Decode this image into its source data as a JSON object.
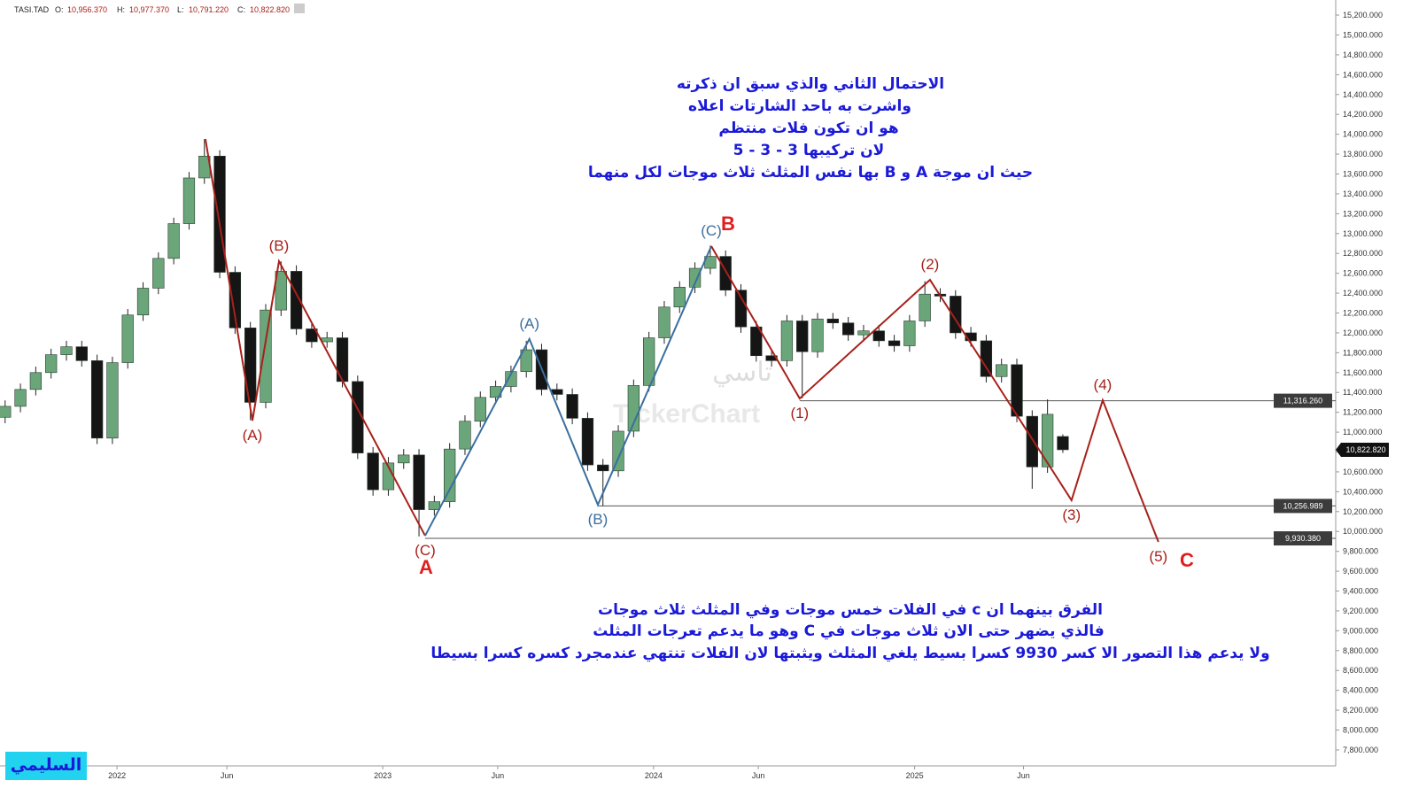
{
  "chart_data": {
    "type": "candlestick",
    "header": {
      "symbol": "TASI.TAD",
      "fields": [
        {
          "name": "O:",
          "value": "10,956.370"
        },
        {
          "name": "H:",
          "value": "10,977.370"
        },
        {
          "name": "L:",
          "value": "10,791.220"
        },
        {
          "name": "C:",
          "value": "10,822.820"
        }
      ]
    },
    "xlim": [
      0,
      261.4
    ],
    "ylim": [
      7657,
      15352
    ],
    "grid": false,
    "xticks": [
      {
        "value": 22.9,
        "label": "2022"
      },
      {
        "value": 44.4,
        "label": "Jun"
      },
      {
        "value": 74.9,
        "label": "2023"
      },
      {
        "value": 97.4,
        "label": "Jun"
      },
      {
        "value": 127.9,
        "label": "2024"
      },
      {
        "value": 148.4,
        "label": "Jun"
      },
      {
        "value": 179,
        "label": "2025"
      },
      {
        "value": 200.3,
        "label": "Jun"
      }
    ],
    "yticks": [
      {
        "value": 7800,
        "label": "7,800.000"
      },
      {
        "value": 8000,
        "label": "8,000.000"
      },
      {
        "value": 8200,
        "label": "8,200.000"
      },
      {
        "value": 8400,
        "label": "8,400.000"
      },
      {
        "value": 8600,
        "label": "8,600.000"
      },
      {
        "value": 8800,
        "label": "8,800.000"
      },
      {
        "value": 9000,
        "label": "9,000.000"
      },
      {
        "value": 9200,
        "label": "9,200.000"
      },
      {
        "value": 9400,
        "label": "9,400.000"
      },
      {
        "value": 9600,
        "label": "9,600.000"
      },
      {
        "value": 9800,
        "label": "9,800.000"
      },
      {
        "value": 10000,
        "label": "10,000.000"
      },
      {
        "value": 10200,
        "label": "10,200.000"
      },
      {
        "value": 10400,
        "label": "10,400.000"
      },
      {
        "value": 10600,
        "label": "10,600.000"
      },
      {
        "value": 10800,
        "label": "10,800.000"
      },
      {
        "value": 11000,
        "label": "11,000.000"
      },
      {
        "value": 11200,
        "label": "11,200.000"
      },
      {
        "value": 11400,
        "label": "11,400.000"
      },
      {
        "value": 11600,
        "label": "11,600.000"
      },
      {
        "value": 11800,
        "label": "11,800.000"
      },
      {
        "value": 12000,
        "label": "12,000.000"
      },
      {
        "value": 12200,
        "label": "12,200.000"
      },
      {
        "value": 12400,
        "label": "12,400.000"
      },
      {
        "value": 12600,
        "label": "12,600.000"
      },
      {
        "value": 12800,
        "label": "12,800.000"
      },
      {
        "value": 13000,
        "label": "13,000.000"
      },
      {
        "value": 13200,
        "label": "13,200.000"
      },
      {
        "value": 13400,
        "label": "13,400.000"
      },
      {
        "value": 13600,
        "label": "13,600.000"
      },
      {
        "value": 13800,
        "label": "13,800.000"
      },
      {
        "value": 14000,
        "label": "14,000.000"
      },
      {
        "value": 14200,
        "label": "14,200.000"
      },
      {
        "value": 14400,
        "label": "14,400.000"
      },
      {
        "value": 14600,
        "label": "14,600.000"
      },
      {
        "value": 14800,
        "label": "14,800.000"
      },
      {
        "value": 15000,
        "label": "15,000.000"
      },
      {
        "value": 15200,
        "label": "15,200.000"
      }
    ],
    "up_color": "#6aa67a",
    "down_color": "#151515",
    "x": [
      1,
      4,
      7,
      10,
      13,
      16,
      19,
      22,
      25,
      28,
      31,
      34,
      37,
      40,
      43,
      46,
      49,
      52,
      55,
      58,
      61,
      64,
      67,
      70,
      73,
      76,
      79,
      82,
      85,
      88,
      91,
      94,
      97,
      100,
      103,
      106,
      109,
      112,
      115,
      118,
      121,
      124,
      127,
      130,
      133,
      136,
      139,
      142,
      145,
      148,
      151,
      154,
      157,
      160,
      163,
      166,
      169,
      172,
      175,
      178,
      181,
      184,
      187,
      190,
      193,
      196,
      199,
      202,
      205,
      208
    ],
    "open": [
      11150,
      11260,
      11430,
      11600,
      11780,
      11860,
      11720,
      10940,
      11700,
      12180,
      12450,
      12750,
      13100,
      13560,
      13780,
      12610,
      12050,
      11300,
      12230,
      12620,
      12040,
      11910,
      11950,
      11510,
      10790,
      10420,
      10690,
      10770,
      10220,
      10300,
      10830,
      11110,
      11350,
      11460,
      11610,
      11830,
      11430,
      11380,
      11140,
      10670,
      10610,
      11010,
      11470,
      11950,
      12260,
      12460,
      12650,
      12770,
      12430,
      12060,
      11770,
      11720,
      12120,
      11810,
      12140,
      12100,
      11980,
      12020,
      11920,
      11870,
      12120,
      12390,
      12370,
      12000,
      11920,
      11560,
      11680,
      11160,
      10650,
      10956.37
    ],
    "high": [
      11320,
      11490,
      11660,
      11840,
      11920,
      11920,
      11780,
      11760,
      12240,
      12510,
      12810,
      13160,
      13620,
      13950,
      13840,
      12670,
      12110,
      12290,
      12720,
      12680,
      12100,
      12010,
      12010,
      11570,
      10850,
      10750,
      10830,
      10830,
      10360,
      10890,
      11170,
      11410,
      11520,
      11670,
      11920,
      11890,
      11490,
      11440,
      11200,
      10730,
      11070,
      11530,
      12010,
      12320,
      12520,
      12710,
      12880,
      12830,
      12490,
      12120,
      11830,
      12180,
      12180,
      12200,
      12200,
      12160,
      12080,
      12080,
      11980,
      12180,
      12520,
      12450,
      12430,
      12060,
      11980,
      11740,
      11740,
      11220,
      11330,
      10977.37
    ],
    "low": [
      11090,
      11200,
      11370,
      11540,
      11720,
      11660,
      10880,
      10880,
      11640,
      12120,
      12390,
      12690,
      13040,
      13500,
      12550,
      11990,
      11120,
      11240,
      12170,
      11980,
      11850,
      11850,
      11450,
      10730,
      10360,
      10360,
      10630,
      9950,
      10160,
      10240,
      10770,
      11050,
      11290,
      11400,
      11550,
      11370,
      11320,
      11080,
      10610,
      10257,
      10550,
      10950,
      11410,
      11890,
      12200,
      12400,
      12590,
      12370,
      12000,
      11710,
      11660,
      11660,
      11340,
      11750,
      12040,
      11920,
      11920,
      11860,
      11810,
      11810,
      12060,
      12310,
      11940,
      11860,
      11500,
      11500,
      11100,
      10430,
      10590,
      10791.22
    ],
    "close": [
      11260,
      11430,
      11600,
      11780,
      11860,
      11720,
      10940,
      11700,
      12180,
      12450,
      12750,
      13100,
      13560,
      13780,
      12610,
      12050,
      11300,
      12230,
      12620,
      12040,
      11910,
      11950,
      11510,
      10790,
      10420,
      10690,
      10770,
      10220,
      10300,
      10830,
      11110,
      11350,
      11460,
      11610,
      11830,
      11430,
      11380,
      11140,
      10670,
      10610,
      11010,
      11470,
      11950,
      12260,
      12460,
      12650,
      12770,
      12430,
      12060,
      11770,
      11720,
      12120,
      11810,
      12140,
      12100,
      11980,
      12020,
      11920,
      11870,
      12120,
      12390,
      12370,
      12000,
      11920,
      11560,
      11680,
      11160,
      10650,
      11180,
      10822.82
    ],
    "last_label": "10,822.820",
    "hlines": [
      {
        "value": 11316.26,
        "label": "11,316.260",
        "from": 156.5
      },
      {
        "value": 10256.989,
        "label": "10,256.989",
        "from": 117
      },
      {
        "value": 9930.38,
        "label": "9,930.380",
        "from": 83.2
      }
    ],
    "waves": [
      {
        "color": "#a8201a",
        "points": [
          {
            "x": 40.2,
            "y": 13952
          },
          {
            "x": 49.4,
            "y": 11116,
            "label": "(A)",
            "side": "below"
          },
          {
            "x": 54.6,
            "y": 12721,
            "label": "(B)",
            "side": "above"
          },
          {
            "x": 83.2,
            "y": 9957,
            "label": "(C)",
            "side": "below"
          }
        ]
      },
      {
        "color": "#3a6f9e",
        "points": [
          {
            "x": 83.2,
            "y": 9957
          },
          {
            "x": 103.6,
            "y": 11938,
            "label": "(A)",
            "side": "above"
          },
          {
            "x": 117,
            "y": 10269,
            "label": "(B)",
            "side": "below"
          },
          {
            "x": 139.2,
            "y": 12873,
            "label": "(C)",
            "side": "above"
          }
        ]
      },
      {
        "color": "#a8201a",
        "points": [
          {
            "x": 139.2,
            "y": 12873
          },
          {
            "x": 156.5,
            "y": 11339,
            "label": "(1)",
            "side": "below"
          },
          {
            "x": 182,
            "y": 12534,
            "label": "(2)",
            "side": "above"
          },
          {
            "x": 209.7,
            "y": 10314,
            "label": "(3)",
            "side": "below"
          },
          {
            "x": 215.8,
            "y": 11322,
            "label": "(4)",
            "side": "above"
          },
          {
            "x": 226.7,
            "y": 9895,
            "label": "(5)",
            "side": "below"
          }
        ]
      }
    ],
    "big_labels": [
      "A",
      "B",
      "C"
    ],
    "note_top": [
      "الاحتمال الثاني والذي سبق ان ذكرته",
      "واشرت به باحد الشارتات اعلاه",
      "هو ان تكون فلات منتظم",
      "لان تركيبها 3 - 3 - 5",
      "حيث ان موجة A و B بها نفس المثلث ثلاث موجات لكل منهما"
    ],
    "note_bottom": [
      "الفرق بينهما ان c في الفلات خمس موجات وفي المثلث ثلاث موجات",
      "فالذي يضهر حتى الان ثلاث موجات في C وهو ما يدعم تعرجات المثلث",
      "ولا يدعم هذا التصور الا كسر 9930 كسرا بسيط يلغي المثلث ويثبتها  لان الفلات تنتهي عندمجرد كسره  كسرا بسيطا"
    ],
    "watermark": [
      "تاسي",
      "TickerChart"
    ],
    "author": "السليمي"
  }
}
